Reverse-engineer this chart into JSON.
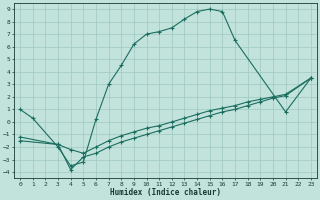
{
  "xlabel": "Humidex (Indice chaleur)",
  "xlim": [
    -0.5,
    23.5
  ],
  "ylim": [
    -4.5,
    9.5
  ],
  "xticks": [
    0,
    1,
    2,
    3,
    4,
    5,
    6,
    7,
    8,
    9,
    10,
    11,
    12,
    13,
    14,
    15,
    16,
    17,
    18,
    19,
    20,
    21,
    22,
    23
  ],
  "yticks": [
    -4,
    -3,
    -2,
    -1,
    0,
    1,
    2,
    3,
    4,
    5,
    6,
    7,
    8,
    9
  ],
  "bg_color": "#c2e2dc",
  "grid_color": "#9ec8c0",
  "line_color": "#1a6e60",
  "main_x": [
    0,
    1,
    3,
    4,
    5,
    6,
    7,
    8,
    9,
    10,
    11,
    12,
    13,
    14,
    15,
    16,
    17,
    21,
    23
  ],
  "main_y": [
    1.0,
    0.3,
    -2.0,
    -3.5,
    -3.2,
    0.2,
    3.0,
    4.5,
    6.2,
    7.0,
    7.2,
    7.5,
    8.2,
    8.8,
    9.0,
    8.8,
    6.5,
    0.8,
    3.5
  ],
  "mid_x": [
    0,
    3,
    4,
    5,
    6,
    7,
    8,
    9,
    10,
    11,
    12,
    13,
    14,
    15,
    16,
    17,
    18,
    19,
    20,
    21,
    23
  ],
  "mid_y": [
    -1.2,
    -1.8,
    -2.2,
    -2.5,
    -2.0,
    -1.5,
    -1.1,
    -0.8,
    -0.5,
    -0.3,
    0.0,
    0.3,
    0.6,
    0.9,
    1.1,
    1.3,
    1.6,
    1.8,
    2.0,
    2.2,
    3.5
  ],
  "low_x": [
    0,
    3,
    4,
    5,
    6,
    7,
    8,
    9,
    10,
    11,
    12,
    13,
    14,
    15,
    16,
    17,
    18,
    19,
    20,
    21,
    23
  ],
  "low_y": [
    -1.5,
    -1.8,
    -3.8,
    -2.8,
    -2.5,
    -2.0,
    -1.6,
    -1.3,
    -1.0,
    -0.7,
    -0.4,
    -0.1,
    0.2,
    0.5,
    0.8,
    1.0,
    1.3,
    1.6,
    1.9,
    2.1,
    3.5
  ]
}
